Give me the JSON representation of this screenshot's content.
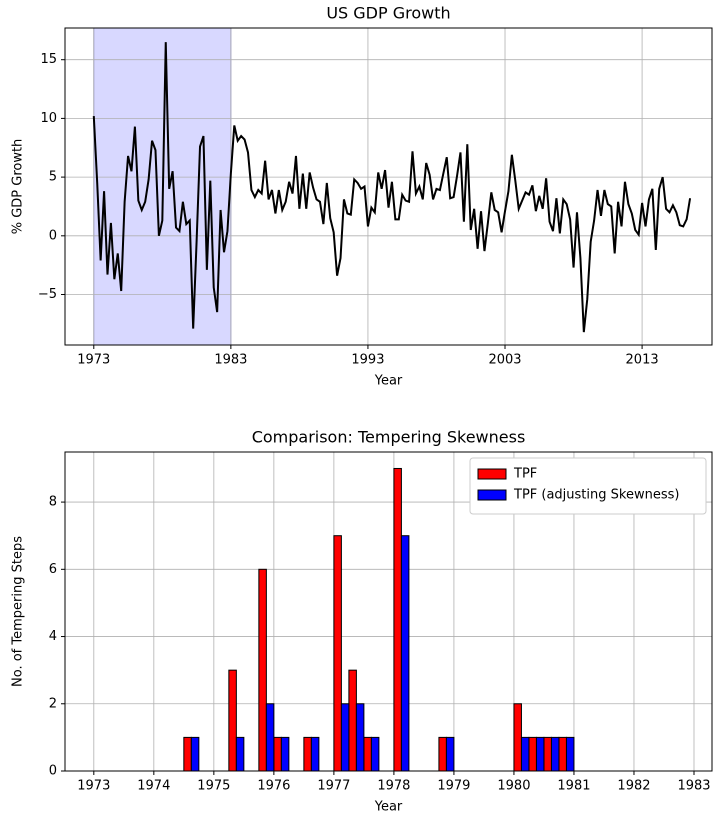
{
  "chart_data": [
    {
      "type": "line",
      "title": "US GDP Growth",
      "xlabel": "Year",
      "ylabel": "% GDP Growth",
      "x": [
        1973,
        1973.25,
        1973.5,
        1973.75,
        1974,
        1974.25,
        1974.5,
        1974.75,
        1975,
        1975.25,
        1975.5,
        1975.75,
        1976,
        1976.25,
        1976.5,
        1976.75,
        1977,
        1977.25,
        1977.5,
        1977.75,
        1978,
        1978.25,
        1978.5,
        1978.75,
        1979,
        1979.25,
        1979.5,
        1979.75,
        1980,
        1980.25,
        1980.5,
        1980.75,
        1981,
        1981.25,
        1981.5,
        1981.75,
        1982,
        1982.25,
        1982.5,
        1982.75,
        1983,
        1983.25,
        1983.5,
        1983.75,
        1984,
        1984.25,
        1984.5,
        1984.75,
        1985,
        1985.25,
        1985.5,
        1985.75,
        1986,
        1986.25,
        1986.5,
        1986.75,
        1987,
        1987.25,
        1987.5,
        1987.75,
        1988,
        1988.25,
        1988.5,
        1988.75,
        1989,
        1989.25,
        1989.5,
        1989.75,
        1990,
        1990.25,
        1990.5,
        1990.75,
        1991,
        1991.25,
        1991.5,
        1991.75,
        1992,
        1992.25,
        1992.5,
        1992.75,
        1993,
        1993.25,
        1993.5,
        1993.75,
        1994,
        1994.25,
        1994.5,
        1994.75,
        1995,
        1995.25,
        1995.5,
        1995.75,
        1996,
        1996.25,
        1996.5,
        1996.75,
        1997,
        1997.25,
        1997.5,
        1997.75,
        1998,
        1998.25,
        1998.5,
        1998.75,
        1999,
        1999.25,
        1999.5,
        1999.75,
        2000,
        2000.25,
        2000.5,
        2000.75,
        2001,
        2001.25,
        2001.5,
        2001.75,
        2002,
        2002.25,
        2002.5,
        2002.75,
        2003,
        2003.25,
        2003.5,
        2003.75,
        2004,
        2004.25,
        2004.5,
        2004.75,
        2005,
        2005.25,
        2005.5,
        2005.75,
        2006,
        2006.25,
        2006.5,
        2006.75,
        2007,
        2007.25,
        2007.5,
        2007.75,
        2008,
        2008.25,
        2008.5,
        2008.75,
        2009,
        2009.25,
        2009.5,
        2009.75,
        2010,
        2010.25,
        2010.5,
        2010.75,
        2011,
        2011.25,
        2011.5,
        2011.75,
        2012,
        2012.25,
        2012.5,
        2012.75,
        2013,
        2013.25,
        2013.5,
        2013.75,
        2014,
        2014.25,
        2014.5,
        2014.75,
        2015,
        2015.25,
        2015.5,
        2015.75,
        2016,
        2016.25,
        2016.5
      ],
      "series": [
        {
          "name": "GDP growth",
          "color": "#000000",
          "values": [
            10.2,
            4.5,
            -2.1,
            3.8,
            -3.3,
            1.1,
            -3.7,
            -1.5,
            -4.7,
            2.9,
            6.8,
            5.5,
            9.3,
            3.0,
            2.2,
            2.9,
            4.8,
            8.1,
            7.3,
            0.0,
            1.3,
            16.5,
            4.0,
            5.5,
            0.7,
            0.4,
            2.9,
            1.0,
            1.3,
            -7.9,
            -0.5,
            7.6,
            8.5,
            -2.9,
            4.7,
            -4.4,
            -6.5,
            2.2,
            -1.4,
            0.4,
            5.3,
            9.4,
            8.1,
            8.5,
            8.2,
            7.1,
            3.9,
            3.3,
            3.9,
            3.6,
            6.4,
            3.1,
            3.9,
            1.9,
            3.9,
            2.2,
            2.9,
            4.6,
            3.6,
            6.8,
            2.3,
            5.3,
            2.3,
            5.4,
            4.1,
            3.1,
            2.9,
            1.0,
            4.5,
            1.5,
            0.3,
            -3.4,
            -1.9,
            3.1,
            1.9,
            1.8,
            4.8,
            4.5,
            4.0,
            4.2,
            0.8,
            2.4,
            2.0,
            5.4,
            4.0,
            5.6,
            2.4,
            4.6,
            1.4,
            1.4,
            3.5,
            3.0,
            2.9,
            7.2,
            3.6,
            4.2,
            3.1,
            6.2,
            5.2,
            3.1,
            4.0,
            3.9,
            5.3,
            6.7,
            3.2,
            3.3,
            5.1,
            7.1,
            1.2,
            7.8,
            0.5,
            2.3,
            -1.1,
            2.1,
            -1.3,
            1.1,
            3.7,
            2.2,
            2.0,
            0.3,
            2.1,
            3.8,
            6.9,
            4.7,
            2.3,
            3.0,
            3.7,
            3.5,
            4.3,
            2.1,
            3.4,
            2.3,
            4.9,
            1.2,
            0.4,
            3.2,
            0.2,
            3.1,
            2.7,
            1.4,
            -2.7,
            2.0,
            -1.9,
            -8.2,
            -5.4,
            -0.5,
            1.3,
            3.9,
            1.7,
            3.9,
            2.7,
            2.5,
            -1.5,
            2.9,
            0.8,
            4.6,
            2.7,
            1.9,
            0.5,
            0.1,
            2.8,
            0.8,
            3.1,
            4.0,
            -1.2,
            4.0,
            5.0,
            2.3,
            2.0,
            2.6,
            2.0,
            0.9,
            0.8,
            1.4,
            3.2
          ]
        }
      ],
      "span": [
        1973,
        1983
      ],
      "span_color": "#d8d8ff",
      "xlim": [
        1970.9,
        2018.1
      ],
      "ylim": [
        -9.3,
        17.7
      ],
      "xticks": [
        1973,
        1983,
        1993,
        2003,
        2013
      ],
      "yticks": [
        {
          "value": -5,
          "label": "−5"
        },
        0,
        5,
        10,
        15
      ],
      "grid": true
    },
    {
      "type": "bar",
      "title": "Comparison: Tempering Skewness",
      "xlabel": "Year",
      "ylabel": "No. of Tempering Steps",
      "x": [
        1974.625,
        1975.375,
        1975.875,
        1976.125,
        1976.625,
        1977.125,
        1977.375,
        1977.625,
        1978.125,
        1978.875,
        1980.125,
        1980.375,
        1980.625,
        1980.875
      ],
      "series": [
        {
          "name": "TPF",
          "color": "#ff0000",
          "values": [
            1,
            3,
            6,
            1,
            1,
            7,
            3,
            1,
            9,
            1,
            2,
            1,
            1,
            1
          ]
        },
        {
          "name": "TPF (adjusting Skewness)",
          "color": "#0000ff",
          "values": [
            1,
            1,
            2,
            1,
            1,
            2,
            2,
            1,
            7,
            1,
            1,
            1,
            1,
            1
          ]
        }
      ],
      "xlim": [
        1972.52,
        1983.3
      ],
      "ylim": [
        0,
        9.49
      ],
      "xticks": [
        1973,
        1974,
        1975,
        1976,
        1977,
        1978,
        1979,
        1980,
        1981,
        1982,
        1983
      ],
      "yticks": [
        0,
        2,
        4,
        6,
        8
      ],
      "grid": true,
      "legend": "upper right"
    }
  ]
}
